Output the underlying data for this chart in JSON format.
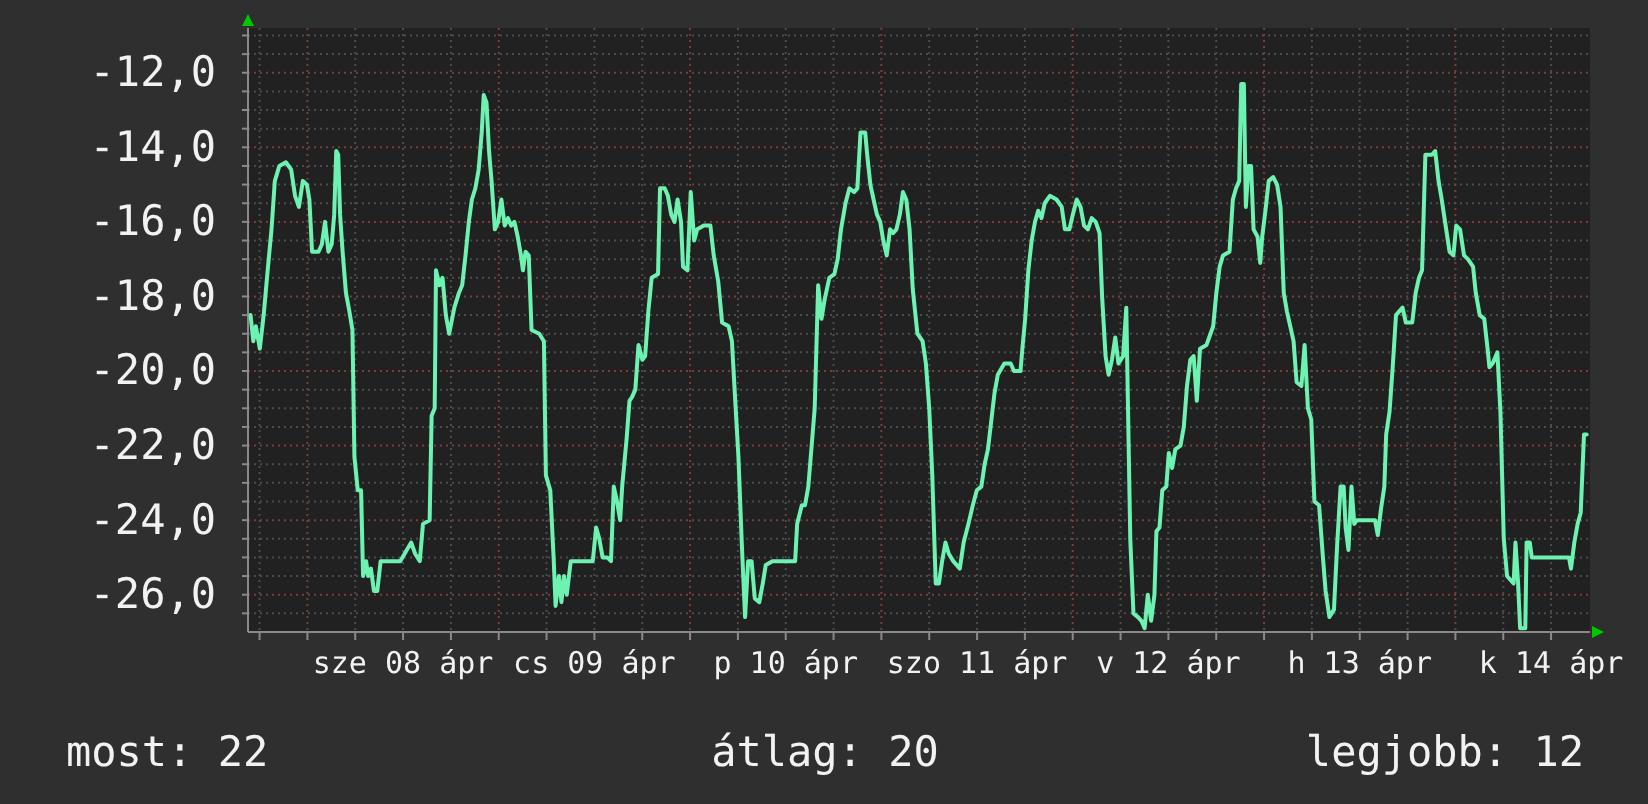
{
  "chart_data": {
    "type": "line",
    "xlim": [
      "--04-07T16:33",
      "--04-14T16:53"
    ],
    "ylim": [
      -27,
      -10.8
    ],
    "xticks": [
      {
        "value": "--04-07T18:00",
        "label": null
      },
      {
        "value": "--04-08T00:00",
        "label": null
      },
      {
        "value": "--04-08T06:00",
        "label": null
      },
      {
        "value": "--04-08T12:00",
        "label": "sze 08 ápr"
      },
      {
        "value": "--04-08T18:00",
        "label": null
      },
      {
        "value": "--04-09T00:00",
        "label": null
      },
      {
        "value": "--04-09T06:00",
        "label": null
      },
      {
        "value": "--04-09T12:00",
        "label": "cs 09 ápr"
      },
      {
        "value": "--04-09T18:00",
        "label": null
      },
      {
        "value": "--04-10T00:00",
        "label": null
      },
      {
        "value": "--04-10T06:00",
        "label": null
      },
      {
        "value": "--04-10T12:00",
        "label": "p 10 ápr"
      },
      {
        "value": "--04-10T18:00",
        "label": null
      },
      {
        "value": "--04-11T00:00",
        "label": null
      },
      {
        "value": "--04-11T06:00",
        "label": null
      },
      {
        "value": "--04-11T12:00",
        "label": "szo 11 ápr"
      },
      {
        "value": "--04-11T18:00",
        "label": null
      },
      {
        "value": "--04-12T00:00",
        "label": null
      },
      {
        "value": "--04-12T06:00",
        "label": null
      },
      {
        "value": "--04-12T12:00",
        "label": "v 12 ápr"
      },
      {
        "value": "--04-12T18:00",
        "label": null
      },
      {
        "value": "--04-13T00:00",
        "label": null
      },
      {
        "value": "--04-13T06:00",
        "label": null
      },
      {
        "value": "--04-13T12:00",
        "label": "h 13 ápr"
      },
      {
        "value": "--04-13T18:00",
        "label": null
      },
      {
        "value": "--04-14T00:00",
        "label": null
      },
      {
        "value": "--04-14T06:00",
        "label": null
      },
      {
        "value": "--04-14T12:00",
        "label": "k 14 ápr"
      }
    ],
    "yticks": [
      {
        "value": -26.5,
        "label": null
      },
      {
        "value": -26,
        "label": "-26,0"
      },
      {
        "value": -25.5,
        "label": null
      },
      {
        "value": -25,
        "label": null
      },
      {
        "value": -24.5,
        "label": null
      },
      {
        "value": -24,
        "label": "-24,0"
      },
      {
        "value": -23.5,
        "label": null
      },
      {
        "value": -23,
        "label": null
      },
      {
        "value": -22.5,
        "label": null
      },
      {
        "value": -22,
        "label": "-22,0"
      },
      {
        "value": -21.5,
        "label": null
      },
      {
        "value": -21,
        "label": null
      },
      {
        "value": -20.5,
        "label": null
      },
      {
        "value": -20,
        "label": "-20,0"
      },
      {
        "value": -19.5,
        "label": null
      },
      {
        "value": -19,
        "label": null
      },
      {
        "value": -18.5,
        "label": null
      },
      {
        "value": -18,
        "label": "-18,0"
      },
      {
        "value": -17.5,
        "label": null
      },
      {
        "value": -17,
        "label": null
      },
      {
        "value": -16.5,
        "label": null
      },
      {
        "value": -16,
        "label": "-16,0"
      },
      {
        "value": -15.5,
        "label": null
      },
      {
        "value": -15,
        "label": null
      },
      {
        "value": -14.5,
        "label": null
      },
      {
        "value": -14,
        "label": "-14,0"
      },
      {
        "value": -13.5,
        "label": null
      },
      {
        "value": -13,
        "label": null
      },
      {
        "value": -12.5,
        "label": null
      },
      {
        "value": -12,
        "label": "-12,0"
      },
      {
        "value": -11.5,
        "label": null
      },
      {
        "value": -11,
        "label": null
      }
    ],
    "grid": true,
    "annotations": [
      "most: 22",
      "átlag: 20",
      "legjobb: 12"
    ],
    "series": [
      {
        "color": "#6ef2b2",
        "x": [
          "--04-07T16:52",
          "--04-07T17:13",
          "--04-07T17:32",
          "--04-07T18:02",
          "--04-07T18:31",
          "--04-07T19:01",
          "--04-07T19:30",
          "--04-07T19:55",
          "--04-07T20:29",
          "--04-07T21:18",
          "--04-07T21:58",
          "--04-07T22:27",
          "--04-07T22:56",
          "--04-07T23:26",
          "--04-07T23:56",
          "--04-08T00:15",
          "--04-08T00:35",
          "--04-08T01:24",
          "--04-08T01:49",
          "--04-08T02:13",
          "--04-08T02:38",
          "--04-08T03:03",
          "--04-08T03:22",
          "--04-08T03:37",
          "--04-08T03:52",
          "--04-08T04:06",
          "--04-08T04:25",
          "--04-08T04:50",
          "--04-08T05:16",
          "--04-08T05:39",
          "--04-08T05:54",
          "--04-08T06:19",
          "--04-08T06:44",
          "--04-08T06:59",
          "--04-08T07:22",
          "--04-08T07:37",
          "--04-08T07:58",
          "--04-08T08:21",
          "--04-08T08:46",
          "--04-08T09:11",
          "--04-08T11:39",
          "--04-08T12:28",
          "--04-08T13:01",
          "--04-08T13:31",
          "--04-08T14:06",
          "--04-08T14:30",
          "--04-08T15:20",
          "--04-08T15:35",
          "--04-08T15:58",
          "--04-08T16:08",
          "--04-08T16:34",
          "--04-08T16:57",
          "--04-08T17:22",
          "--04-08T17:47",
          "--04-08T18:26",
          "--04-08T19:01",
          "--04-08T19:25",
          "--04-08T19:50",
          "--04-08T20:15",
          "--04-08T20:38",
          "--04-08T21:04",
          "--04-08T21:29",
          "--04-08T21:52",
          "--04-08T22:07",
          "--04-08T22:28",
          "--04-08T22:47",
          "--04-08T23:06",
          "--04-08T23:31",
          "--04-08T23:56",
          "--04-09T00:20",
          "--04-09T00:45",
          "--04-09T01:10",
          "--04-09T01:33",
          "--04-09T01:58",
          "--04-09T02:23",
          "--04-09T02:47",
          "--04-09T03:02",
          "--04-09T03:22",
          "--04-09T03:46",
          "--04-09T04:07",
          "--04-09T05:05",
          "--04-09T05:40",
          "--04-09T05:55",
          "--04-09T06:28",
          "--04-09T06:53",
          "--04-09T07:08",
          "--04-09T07:33",
          "--04-09T07:52",
          "--04-09T08:11",
          "--04-09T08:32",
          "--04-09T09:02",
          "--04-09T11:48",
          "--04-09T12:13",
          "--04-09T12:37",
          "--04-09T13:02",
          "--04-09T13:36",
          "--04-09T14:05",
          "--04-09T14:26",
          "--04-09T14:50",
          "--04-09T15:14",
          "--04-09T15:29",
          "--04-09T16:03",
          "--04-09T16:24",
          "--04-09T16:43",
          "--04-09T17:08",
          "--04-09T17:32",
          "--04-09T18:01",
          "--04-09T18:22",
          "--04-09T18:46",
          "--04-09T19:11",
          "--04-09T19:59",
          "--04-09T20:14",
          "--04-09T20:49",
          "--04-09T21:13",
          "--04-09T21:38",
          "--04-09T22:03",
          "--04-09T22:26",
          "--04-09T22:52",
          "--04-09T23:07",
          "--04-09T23:40",
          "--04-10T00:05",
          "--04-10T00:31",
          "--04-10T00:54",
          "--04-10T01:44",
          "--04-10T02:33",
          "--04-10T02:58",
          "--04-10T03:32",
          "--04-10T04:01",
          "--04-10T04:50",
          "--04-10T05:15",
          "--04-10T05:40",
          "--04-10T06:04",
          "--04-10T06:29",
          "--04-10T06:54",
          "--04-10T07:17",
          "--04-10T07:43",
          "--04-10T08:07",
          "--04-10T08:41",
          "--04-10T09:07",
          "--04-10T09:30",
          "--04-10T10:20",
          "--04-10T13:11",
          "--04-10T13:26",
          "--04-10T14:01",
          "--04-10T14:25",
          "--04-10T14:50",
          "--04-10T15:38",
          "--04-10T16:04",
          "--04-10T16:29",
          "--04-10T16:52",
          "--04-10T17:28",
          "--04-10T18:06",
          "--04-10T18:31",
          "--04-10T18:56",
          "--04-10T19:30",
          "--04-10T19:59",
          "--04-10T20:34",
          "--04-10T20:59",
          "--04-10T21:23",
          "--04-10T21:58",
          "--04-10T22:13",
          "--04-10T22:37",
          "--04-10T23:01",
          "--04-10T23:26",
          "--04-10T23:51",
          "--04-11T00:14",
          "--04-11T00:40",
          "--04-11T01:05",
          "--04-11T01:28",
          "--04-11T01:53",
          "--04-11T02:19",
          "--04-11T02:42",
          "--04-11T03:07",
          "--04-11T03:32",
          "--04-11T03:56",
          "--04-11T04:31",
          "--04-11T05:10",
          "--04-11T05:35",
          "--04-11T06:00",
          "--04-11T06:23",
          "--04-11T06:49",
          "--04-11T07:13",
          "--04-11T07:37",
          "--04-11T08:02",
          "--04-11T08:27",
          "--04-11T09:01",
          "--04-11T09:50",
          "--04-11T10:19",
          "--04-11T10:55",
          "--04-11T11:28",
          "--04-11T11:58",
          "--04-11T12:32",
          "--04-11T12:57",
          "--04-11T13:22",
          "--04-11T14:11",
          "--04-11T14:36",
          "--04-11T15:25",
          "--04-11T16:13",
          "--04-11T16:38",
          "--04-11T17:27",
          "--04-11T17:41",
          "--04-11T18:02",
          "--04-11T18:26",
          "--04-11T18:51",
          "--04-11T19:16",
          "--04-11T19:40",
          "--04-11T20:05",
          "--04-11T20:29",
          "--04-11T21:08",
          "--04-11T21:58",
          "--04-11T22:37",
          "--04-11T23:01",
          "--04-11T23:35",
          "--04-12T00:01",
          "--04-12T00:30",
          "--04-12T00:59",
          "--04-12T01:25",
          "--04-12T01:54",
          "--04-12T02:23",
          "--04-12T02:53",
          "--04-12T03:22",
          "--04-12T03:41",
          "--04-12T04:07",
          "--04-12T04:30",
          "--04-12T04:55",
          "--04-12T05:20",
          "--04-12T05:44",
          "--04-12T06:19",
          "--04-12T06:43",
          "--04-12T07:13",
          "--04-12T07:37",
          "--04-12T08:11",
          "--04-12T08:37",
          "--04-12T09:01",
          "--04-12T09:25",
          "--04-12T09:50",
          "--04-12T10:15",
          "--04-12T10:30",
          "--04-12T10:53",
          "--04-12T11:14",
          "--04-12T11:44",
          "--04-12T12:03",
          "--04-12T12:28",
          "--04-12T12:52",
          "--04-12T13:31",
          "--04-12T13:56",
          "--04-12T14:20",
          "--04-12T14:45",
          "--04-12T15:10",
          "--04-12T15:34",
          "--04-12T15:58",
          "--04-12T16:47",
          "--04-12T17:37",
          "--04-12T18:01",
          "--04-12T18:26",
          "--04-12T18:51",
          "--04-12T19:40",
          "--04-12T20:05",
          "--04-12T20:29",
          "--04-12T20:53",
          "--04-12T21:08",
          "--04-12T21:28",
          "--04-12T21:43",
          "--04-12T22:03",
          "--04-12T22:22",
          "--04-12T22:41",
          "--04-12T23:11",
          "--04-12T23:31",
          "--04-12T23:46",
          "--04-13T00:10",
          "--04-13T00:35",
          "--04-13T01:09",
          "--04-13T01:38",
          "--04-13T02:04",
          "--04-13T02:28",
          "--04-13T02:52",
          "--04-13T03:17",
          "--04-13T03:42",
          "--04-13T04:05",
          "--04-13T04:41",
          "--04-13T05:05",
          "--04-13T05:30",
          "--04-13T05:55",
          "--04-13T06:19",
          "--04-13T06:54",
          "--04-13T07:23",
          "--04-13T07:43",
          "--04-13T08:12",
          "--04-13T08:46",
          "--04-13T09:11",
          "--04-13T09:36",
          "--04-13T09:59",
          "--04-13T10:14",
          "--04-13T10:35",
          "--04-13T10:58",
          "--04-13T11:19",
          "--04-13T11:38",
          "--04-13T13:55",
          "--04-13T14:16",
          "--04-13T14:40",
          "--04-13T15:05",
          "--04-13T15:19",
          "--04-13T15:44",
          "--04-13T16:08",
          "--04-13T16:33",
          "--04-13T17:22",
          "--04-13T17:47",
          "--04-13T18:35",
          "--04-13T19:01",
          "--04-13T19:26",
          "--04-13T19:49",
          "--04-13T20:14",
          "--04-13T21:03",
          "--04-13T21:28",
          "--04-13T21:53",
          "--04-13T22:17",
          "--04-13T22:42",
          "--04-13T23:16",
          "--04-13T23:45",
          "--04-14T00:06",
          "--04-14T00:35",
          "--04-14T01:05",
          "--04-14T01:34",
          "--04-14T02:13",
          "--04-14T02:33",
          "--04-14T03:03",
          "--04-14T03:37",
          "--04-14T04:02",
          "--04-14T04:16",
          "--04-14T04:40",
          "--04-14T05:16",
          "--04-14T05:39",
          "--04-14T06:04",
          "--04-14T06:29",
          "--04-14T06:53",
          "--04-14T07:18",
          "--04-14T07:32",
          "--04-14T07:52",
          "--04-14T08:07",
          "--04-14T08:46",
          "--04-14T08:56",
          "--04-14T09:20",
          "--04-14T09:35",
          "--04-14T14:15",
          "--04-14T14:30",
          "--04-14T14:55",
          "--04-14T15:20",
          "--04-14T15:43",
          "--04-14T16:08",
          "--04-14T16:28"
        ],
        "values": [
          -18.5,
          -19.2,
          -18.8,
          -19.4,
          -18.5,
          -17.3,
          -16.2,
          -14.9,
          -14.5,
          -14.4,
          -14.6,
          -15.3,
          -15.6,
          -14.9,
          -15.0,
          -15.4,
          -16.8,
          -16.8,
          -16.6,
          -16.0,
          -16.8,
          -16.6,
          -15.8,
          -14.1,
          -14.2,
          -15.8,
          -16.8,
          -17.9,
          -18.4,
          -18.9,
          -22.3,
          -23.2,
          -23.2,
          -25.5,
          -25.1,
          -25.5,
          -25.3,
          -25.9,
          -25.9,
          -25.1,
          -25.1,
          -24.8,
          -24.6,
          -24.9,
          -25.1,
          -24.1,
          -24.0,
          -21.2,
          -21.0,
          -17.3,
          -17.7,
          -17.5,
          -18.5,
          -19.0,
          -18.3,
          -17.9,
          -17.7,
          -16.9,
          -16.0,
          -15.4,
          -15.1,
          -14.6,
          -13.6,
          -12.6,
          -12.8,
          -14.1,
          -14.9,
          -16.2,
          -16.0,
          -15.4,
          -16.1,
          -15.9,
          -16.1,
          -16.0,
          -16.4,
          -16.9,
          -17.3,
          -16.8,
          -16.9,
          -18.9,
          -19.0,
          -19.2,
          -22.8,
          -23.2,
          -25.0,
          -26.3,
          -25.5,
          -26.2,
          -25.5,
          -26.0,
          -25.1,
          -25.1,
          -24.2,
          -24.5,
          -25.0,
          -25.0,
          -25.1,
          -23.1,
          -23.5,
          -24.0,
          -23.1,
          -21.8,
          -20.8,
          -20.7,
          -20.5,
          -19.3,
          -19.7,
          -19.6,
          -18.4,
          -17.5,
          -17.4,
          -15.1,
          -15.1,
          -15.3,
          -15.8,
          -16.0,
          -15.4,
          -16.0,
          -17.2,
          -17.3,
          -15.2,
          -16.5,
          -16.2,
          -16.1,
          -16.1,
          -16.9,
          -17.6,
          -18.7,
          -18.8,
          -19.2,
          -20.8,
          -22.3,
          -24.6,
          -26.6,
          -25.1,
          -25.1,
          -26.1,
          -26.2,
          -25.7,
          -25.2,
          -25.1,
          -25.1,
          -24.1,
          -23.6,
          -23.6,
          -23.1,
          -21.0,
          -17.7,
          -18.6,
          -18.1,
          -17.5,
          -17.4,
          -17.0,
          -16.2,
          -15.5,
          -15.1,
          -15.2,
          -15.1,
          -13.6,
          -13.6,
          -14.2,
          -15.0,
          -15.4,
          -15.8,
          -16.0,
          -16.5,
          -16.9,
          -16.2,
          -16.3,
          -16.2,
          -15.8,
          -15.2,
          -15.4,
          -16.2,
          -17.8,
          -19.0,
          -19.2,
          -19.8,
          -21.0,
          -22.8,
          -25.7,
          -25.7,
          -25.1,
          -24.6,
          -24.9,
          -25.1,
          -25.3,
          -24.6,
          -24.1,
          -23.6,
          -23.2,
          -23.1,
          -22.5,
          -22.1,
          -20.6,
          -20.1,
          -19.8,
          -19.8,
          -20.0,
          -20.0,
          -19.4,
          -18.6,
          -17.3,
          -16.5,
          -16.0,
          -15.7,
          -15.9,
          -15.5,
          -15.3,
          -15.4,
          -15.6,
          -16.2,
          -16.2,
          -15.8,
          -15.4,
          -15.6,
          -16.1,
          -16.2,
          -15.9,
          -16.0,
          -16.3,
          -18.0,
          -19.6,
          -20.1,
          -19.7,
          -19.1,
          -19.8,
          -19.6,
          -18.3,
          -24.5,
          -26.5,
          -26.6,
          -26.7,
          -26.9,
          -26.0,
          -26.7,
          -26.0,
          -24.3,
          -24.2,
          -23.2,
          -23.1,
          -22.2,
          -22.6,
          -22.1,
          -22.0,
          -21.5,
          -20.4,
          -19.7,
          -19.6,
          -20.8,
          -19.4,
          -19.3,
          -18.8,
          -17.9,
          -17.2,
          -16.9,
          -16.8,
          -15.4,
          -15.1,
          -14.9,
          -12.3,
          -12.3,
          -15.6,
          -14.5,
          -14.5,
          -16.2,
          -16.4,
          -17.1,
          -16.4,
          -15.7,
          -14.9,
          -14.8,
          -15.0,
          -15.6,
          -17.9,
          -18.4,
          -18.8,
          -19.2,
          -20.3,
          -20.4,
          -19.3,
          -21.0,
          -21.3,
          -23.5,
          -23.6,
          -25.0,
          -25.9,
          -26.6,
          -26.4,
          -24.6,
          -23.1,
          -23.1,
          -24.2,
          -24.8,
          -23.1,
          -24.1,
          -24.0,
          -24.0,
          -24.4,
          -23.7,
          -23.1,
          -21.7,
          -21.1,
          -19.9,
          -18.5,
          -18.3,
          -18.7,
          -18.7,
          -17.9,
          -17.5,
          -17.3,
          -14.2,
          -14.2,
          -14.1,
          -14.9,
          -15.4,
          -16.0,
          -16.8,
          -16.9,
          -16.1,
          -16.2,
          -16.9,
          -17.0,
          -17.2,
          -17.9,
          -18.5,
          -18.6,
          -19.4,
          -19.9,
          -19.8,
          -19.5,
          -21.1,
          -24.5,
          -25.5,
          -25.6,
          -25.7,
          -24.6,
          -25.7,
          -26.9,
          -26.9,
          -24.6,
          -24.6,
          -25.0,
          -25.0,
          -25.3,
          -24.6,
          -24.1,
          -23.8,
          -21.7,
          -21.7
        ]
      }
    ]
  }
}
